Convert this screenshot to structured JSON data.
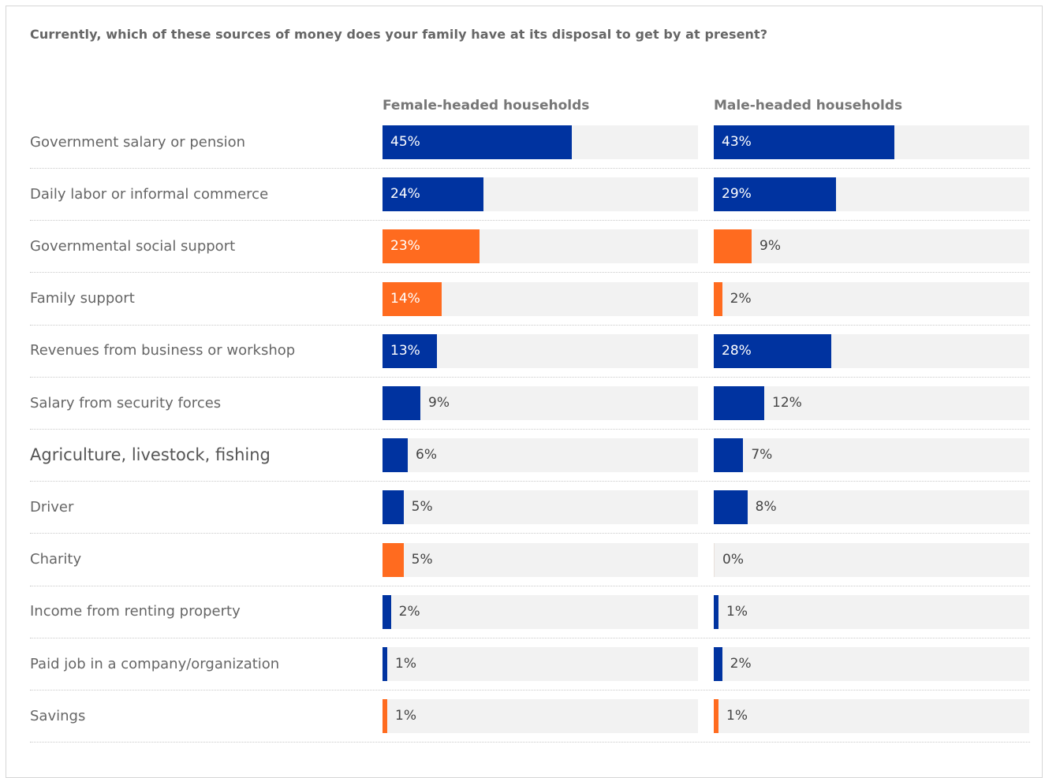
{
  "title": "Currently, which of these sources of money does your family have at its disposal to get by at present?",
  "colors": {
    "blue": "#0033a0",
    "orange": "#ff6b1f",
    "track": "#f2f2f2"
  },
  "chart_data": {
    "type": "bar",
    "orientation": "horizontal",
    "title": "Currently, which of these sources of money does your family have at its disposal to get by at present?",
    "xlim": [
      0,
      75
    ],
    "series": [
      {
        "name": "Female-headed households",
        "values": [
          45,
          24,
          23,
          14,
          13,
          9,
          6,
          5,
          5,
          2,
          1,
          1
        ],
        "labels": [
          "45%",
          "24%",
          "23%",
          "14%",
          "13%",
          "9%",
          "6%",
          "5%",
          "5%",
          "2%",
          "1%",
          "1%"
        ]
      },
      {
        "name": "Male-headed households",
        "values": [
          43,
          29,
          9,
          2,
          28,
          12,
          7,
          8,
          0,
          1,
          2,
          1
        ],
        "labels": [
          "43%",
          "29%",
          "9%",
          "2%",
          "28%",
          "12%",
          "7%",
          "8%",
          "0%",
          "1%",
          "2%",
          "1%"
        ]
      }
    ],
    "categories": [
      "Government salary or pension",
      "Daily labor or informal commerce",
      "Governmental social support",
      "Family support",
      "Revenues from business or workshop",
      "Salary from security forces",
      "Agriculture, livestock, fishing",
      "Driver",
      "Charity",
      "Income from renting property",
      "Paid job in a company/organization",
      "Savings"
    ],
    "category_colors": [
      "blue",
      "blue",
      "orange",
      "orange",
      "blue",
      "blue",
      "blue",
      "blue",
      "orange",
      "blue",
      "blue",
      "orange"
    ],
    "grid": false,
    "legend": "none"
  }
}
